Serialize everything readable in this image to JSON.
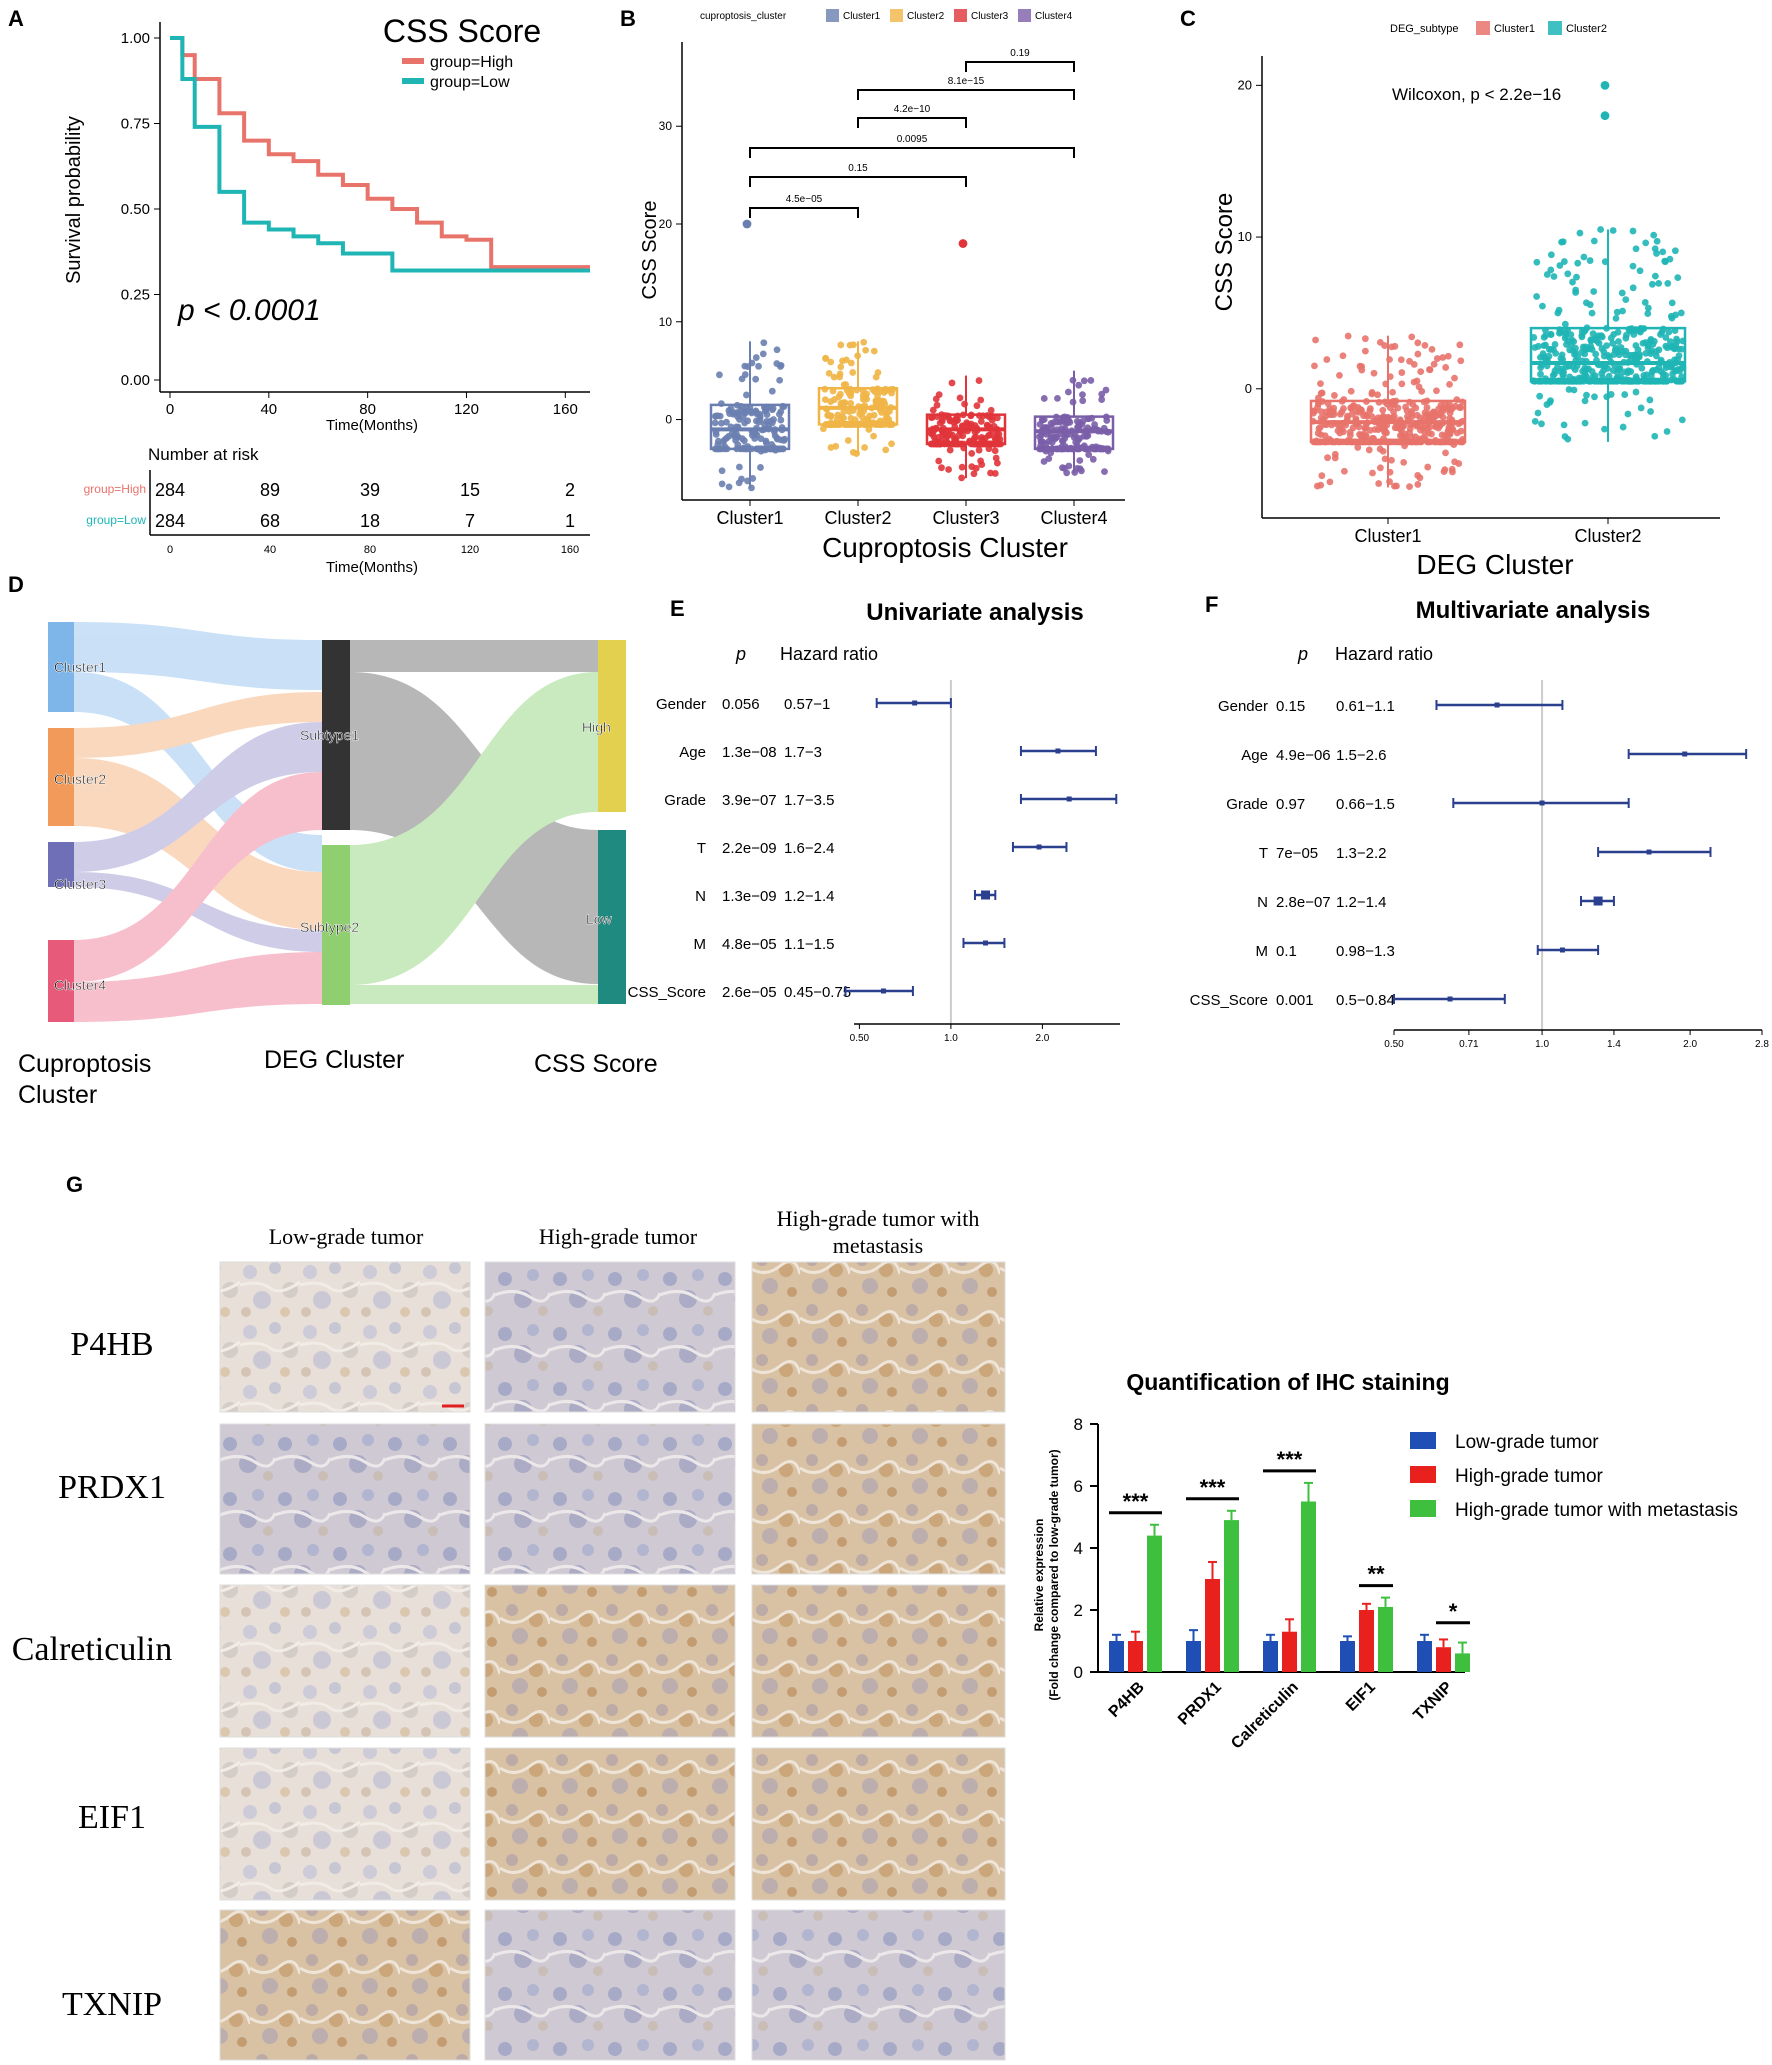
{
  "panels": {
    "A": {
      "letter": "A",
      "title": "CSS Score",
      "legend": [
        "group=High",
        "group=Low"
      ],
      "ylabel": "Survival probability",
      "xlabel": "Time(Months)",
      "yticks": [
        "0.00",
        "0.25",
        "0.50",
        "0.75",
        "1.00"
      ],
      "xticks": [
        "0",
        "40",
        "80",
        "120",
        "160"
      ],
      "pvalue": "p < 0.0001",
      "risk_title": "Number at risk",
      "risk_groups": [
        "group=High",
        "group=Low"
      ],
      "risk_high": [
        "284",
        "89",
        "39",
        "15",
        "2"
      ],
      "risk_low": [
        "284",
        "68",
        "18",
        "7",
        "1"
      ],
      "risk_xticks": [
        "0",
        "40",
        "80",
        "120",
        "160"
      ],
      "risk_xlabel": "Time(Months)"
    },
    "B": {
      "letter": "B",
      "legend_title": "cuproptosis_cluster",
      "legend": [
        "Cluster1",
        "Cluster2",
        "Cluster3",
        "Cluster4"
      ],
      "ylabel": "CSS Score",
      "xlabel": "Cuproptosis Cluster",
      "categories": [
        "Cluster1",
        "Cluster2",
        "Cluster3",
        "Cluster4"
      ],
      "yticks": [
        "0",
        "10",
        "20",
        "30"
      ],
      "pvals": [
        "0.19",
        "8.1e−15",
        "4.2e−10",
        "0.0095",
        "0.15",
        "4.5e−05"
      ]
    },
    "C": {
      "letter": "C",
      "legend_title": "DEG_subtype",
      "legend": [
        "Cluster1",
        "Cluster2"
      ],
      "ylabel": "CSS Score",
      "xlabel": "DEG Cluster",
      "categories": [
        "Cluster1",
        "Cluster2"
      ],
      "yticks": [
        "0",
        "10",
        "20"
      ],
      "stat": "Wilcoxon, p < 2.2e−16"
    },
    "D": {
      "letter": "D",
      "left_nodes": [
        "Cluster1",
        "Cluster2",
        "Cluster3",
        "Cluster4"
      ],
      "mid_nodes": [
        "Subtype1",
        "Subtype2"
      ],
      "right_nodes": [
        "High",
        "Low"
      ],
      "axis_labels": [
        "Cuproptosis Cluster",
        "DEG Cluster",
        "CSS Score"
      ]
    },
    "E": {
      "letter": "E",
      "title": "Univariate analysis",
      "col_p": "p",
      "col_hr": "Hazard ratio",
      "rows": [
        {
          "name": "Gender",
          "p": "0.056",
          "ci": "0.57−1",
          "est": 0.76,
          "lo": 0.57,
          "hi": 1.0
        },
        {
          "name": "Age",
          "p": "1.3e−08",
          "ci": "1.7−3",
          "est": 2.25,
          "lo": 1.7,
          "hi": 3.0
        },
        {
          "name": "Grade",
          "p": "3.9e−07",
          "ci": "1.7−3.5",
          "est": 2.45,
          "lo": 1.7,
          "hi": 3.5
        },
        {
          "name": "T",
          "p": "2.2e−09",
          "ci": "1.6−2.4",
          "est": 1.95,
          "lo": 1.6,
          "hi": 2.4
        },
        {
          "name": "N",
          "p": "1.3e−09",
          "ci": "1.2−1.4",
          "est": 1.3,
          "lo": 1.2,
          "hi": 1.4
        },
        {
          "name": "M",
          "p": "4.8e−05",
          "ci": "1.1−1.5",
          "est": 1.3,
          "lo": 1.1,
          "hi": 1.5
        },
        {
          "name": "CSS_Score",
          "p": "2.6e−05",
          "ci": "0.45−0.75",
          "est": 0.6,
          "lo": 0.45,
          "hi": 0.75
        }
      ],
      "xticks": [
        "0.50",
        "1.0",
        "2.0"
      ]
    },
    "F": {
      "letter": "F",
      "title": "Multivariate analysis",
      "col_p": "p",
      "col_hr": "Hazard ratio",
      "rows": [
        {
          "name": "Gender",
          "p": "0.15",
          "ci": "0.61−1.1",
          "est": 0.81,
          "lo": 0.61,
          "hi": 1.1
        },
        {
          "name": "Age",
          "p": "4.9e−06",
          "ci": "1.5−2.6",
          "est": 1.95,
          "lo": 1.5,
          "hi": 2.6
        },
        {
          "name": "Grade",
          "p": "0.97",
          "ci": "0.66−1.5",
          "est": 1.0,
          "lo": 0.66,
          "hi": 1.5
        },
        {
          "name": "T",
          "p": "7e−05",
          "ci": "1.3−2.2",
          "est": 1.65,
          "lo": 1.3,
          "hi": 2.2
        },
        {
          "name": "N",
          "p": "2.8e−07",
          "ci": "1.2−1.4",
          "est": 1.3,
          "lo": 1.2,
          "hi": 1.4
        },
        {
          "name": "M",
          "p": "0.1",
          "ci": "0.98−1.3",
          "est": 1.1,
          "lo": 0.98,
          "hi": 1.3
        },
        {
          "name": "CSS_Score",
          "p": "0.001",
          "ci": "0.5−0.84",
          "est": 0.65,
          "lo": 0.5,
          "hi": 0.84
        }
      ],
      "xticks": [
        "0.50",
        "0.71",
        "1.0",
        "1.4",
        "2.0",
        "2.8"
      ]
    },
    "G": {
      "letter": "G",
      "columns": [
        "Low-grade tumor",
        "High-grade tumor",
        "High-grade tumor with metastasis"
      ],
      "rows": [
        "P4HB",
        "PRDX1",
        "Calreticulin",
        "EIF1",
        "TXNIP"
      ],
      "bar_title": "Quantification of IHC staining",
      "ylabel1": "Relative expression",
      "ylabel2": "(Fold change compared to low-grade tumor)",
      "legend": [
        "Low-grade tumor",
        "High-grade tumor",
        "High-grade tumor with metastasis"
      ],
      "yticks": [
        "0",
        "2",
        "4",
        "6",
        "8"
      ],
      "sig": [
        "***",
        "***",
        "***",
        "**",
        "*"
      ]
    }
  },
  "colors": {
    "high": "#e8736b",
    "low": "#1fb5b5",
    "c1": "#6a7fb0",
    "c2": "#f0b546",
    "c3": "#e0343a",
    "c4": "#7a5ea8",
    "forest": "#2b3f8f",
    "bar_blue": "#1f4fb5",
    "bar_red": "#e8211f",
    "bar_green": "#3ec03e"
  },
  "chart_data": [
    {
      "type": "line",
      "title": "CSS Score",
      "xlabel": "Time(Months)",
      "ylabel": "Survival probability",
      "xlim": [
        0,
        170
      ],
      "ylim": [
        0,
        1
      ],
      "series": [
        {
          "name": "group=High",
          "x": [
            0,
            5,
            10,
            20,
            30,
            40,
            50,
            60,
            70,
            80,
            90,
            100,
            110,
            120,
            130,
            140,
            160,
            170
          ],
          "values": [
            1.0,
            0.95,
            0.88,
            0.78,
            0.7,
            0.66,
            0.64,
            0.6,
            0.57,
            0.53,
            0.5,
            0.46,
            0.42,
            0.41,
            0.33,
            0.33,
            0.33,
            0.33
          ]
        },
        {
          "name": "group=Low",
          "x": [
            0,
            5,
            10,
            20,
            30,
            40,
            50,
            60,
            70,
            80,
            90,
            100,
            110,
            120,
            130,
            140,
            160,
            170
          ],
          "values": [
            1.0,
            0.88,
            0.74,
            0.55,
            0.46,
            0.44,
            0.42,
            0.4,
            0.37,
            0.37,
            0.32,
            0.32,
            0.32,
            0.32,
            0.32,
            0.32,
            0.32,
            0.32
          ]
        }
      ],
      "annotation": "p < 0.0001"
    },
    {
      "type": "box",
      "title": "",
      "xlabel": "Cuproptosis Cluster",
      "ylabel": "CSS Score",
      "categories": [
        "Cluster1",
        "Cluster2",
        "Cluster3",
        "Cluster4"
      ],
      "ylim": [
        -7,
        38
      ],
      "q1": [
        -3,
        -0.5,
        -2.5,
        -3
      ],
      "median": [
        -1,
        1.2,
        -1,
        -1.2
      ],
      "q3": [
        1.5,
        3.2,
        0.5,
        0.3
      ],
      "whisker_lo": [
        -7,
        -3.5,
        -6,
        -5.5
      ],
      "whisker_hi": [
        8,
        8,
        4.5,
        5
      ],
      "outliers": [
        [
          20
        ],
        [],
        [
          18
        ],
        []
      ]
    },
    {
      "type": "box",
      "title": "",
      "xlabel": "DEG Cluster",
      "ylabel": "CSS Score",
      "categories": [
        "Cluster1",
        "Cluster2"
      ],
      "ylim": [
        -7,
        22
      ],
      "q1": [
        -3.5,
        0.5
      ],
      "median": [
        -2.2,
        1.7
      ],
      "q3": [
        -0.8,
        4
      ],
      "whisker_lo": [
        -6.5,
        -3.5
      ],
      "whisker_hi": [
        3.5,
        10.5
      ],
      "outliers": [
        [],
        [
          18,
          20
        ]
      ]
    },
    {
      "type": "sankey",
      "nodes": [
        "Cluster1",
        "Cluster2",
        "Cluster3",
        "Cluster4",
        "Subtype1",
        "Subtype2",
        "High",
        "Low"
      ]
    },
    {
      "type": "forest",
      "title": "Univariate analysis",
      "xscale": "log",
      "xlim": [
        0.45,
        3.5
      ]
    },
    {
      "type": "forest",
      "title": "Multivariate analysis",
      "xscale": "log",
      "xlim": [
        0.5,
        2.8
      ]
    },
    {
      "type": "bar",
      "title": "Quantification of IHC staining",
      "categories": [
        "P4HB",
        "PRDX1",
        "Calreticulin",
        "EIF1",
        "TXNIP"
      ],
      "ylim": [
        0,
        8
      ],
      "series": [
        {
          "name": "Low-grade tumor",
          "values": [
            1.0,
            1.0,
            1.0,
            1.0,
            1.0
          ],
          "err": [
            0.2,
            0.35,
            0.2,
            0.15,
            0.2
          ]
        },
        {
          "name": "High-grade tumor",
          "values": [
            1.0,
            3.0,
            1.3,
            2.0,
            0.8
          ],
          "err": [
            0.3,
            0.55,
            0.4,
            0.2,
            0.25
          ]
        },
        {
          "name": "High-grade tumor with metastasis",
          "values": [
            4.4,
            4.9,
            5.5,
            2.1,
            0.6
          ],
          "err": [
            0.35,
            0.3,
            0.6,
            0.3,
            0.35
          ]
        }
      ]
    }
  ]
}
